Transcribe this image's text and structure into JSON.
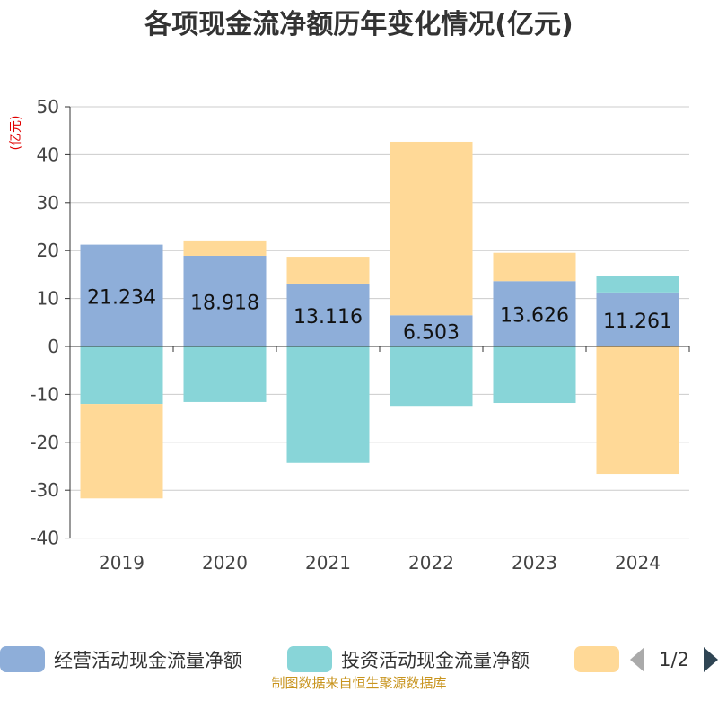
{
  "chart_data": {
    "type": "bar",
    "stacked": true,
    "title": "各项现金流净额历年变化情况(亿元)",
    "ylabel": "(亿元)",
    "xlabel": "",
    "ylim": [
      -40,
      50
    ],
    "yticks": [
      50,
      40,
      30,
      20,
      10,
      0,
      -10,
      -20,
      -30,
      -40
    ],
    "categories": [
      "2019",
      "2020",
      "2021",
      "2022",
      "2023",
      "2024"
    ],
    "series": [
      {
        "name": "经营活动现金流量净额",
        "color": "#8eaed9",
        "values": [
          21.234,
          18.918,
          13.116,
          6.503,
          13.626,
          11.261
        ],
        "labels": [
          "21.234",
          "18.918",
          "13.116",
          "6.503",
          "13.626",
          "11.261"
        ]
      },
      {
        "name": "投资活动现金流量净额",
        "color": "#88d5d8",
        "values": [
          -12.0,
          -11.6,
          -24.3,
          -12.4,
          -11.8,
          3.5
        ]
      },
      {
        "name": "",
        "color": "#ffd997",
        "values": [
          -19.7,
          3.2,
          5.6,
          36.2,
          5.9,
          -26.6
        ]
      }
    ],
    "legend": {
      "position": "bottom",
      "page": "1/2"
    },
    "grid": true
  },
  "footer": "制图数据来自恒生聚源数据库",
  "colors": {
    "title": "#333333",
    "ylabel": "#e00000",
    "footer": "#c8941e",
    "axis": "#333333",
    "grid": "#cccccc"
  }
}
